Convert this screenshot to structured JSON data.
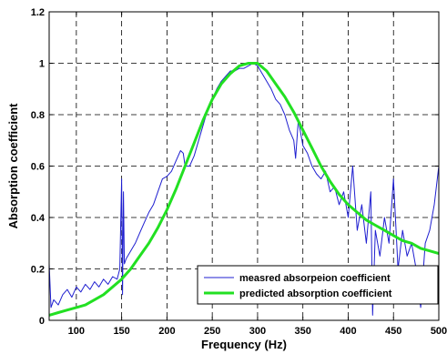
{
  "chart_data": {
    "type": "line",
    "title": "",
    "xlabel": "Frequency (Hz)",
    "ylabel": "Absorption coefficient",
    "xlim": [
      70,
      500
    ],
    "ylim": [
      0,
      1.2
    ],
    "xticks": [
      100,
      150,
      200,
      250,
      300,
      350,
      400,
      450,
      500
    ],
    "yticks": [
      0,
      0.2,
      0.4,
      0.6,
      0.8,
      1,
      1.2
    ],
    "xtick_labels": [
      "100",
      "150",
      "200",
      "250",
      "300",
      "350",
      "400",
      "450",
      "500"
    ],
    "ytick_labels": [
      "0",
      "0.2",
      "0.4",
      "0.6",
      "0.8",
      "1",
      "1.2"
    ],
    "grid": true,
    "grid_style": "dashed",
    "legend_position": "bottom-right",
    "series": [
      {
        "name": "measred absorpeion coefficient",
        "color": "#1f1fd0",
        "style": "noisy-thin",
        "x": [
          70,
          72,
          75,
          80,
          85,
          90,
          95,
          100,
          105,
          110,
          115,
          120,
          125,
          130,
          135,
          140,
          145,
          148,
          150,
          151,
          152,
          153,
          155,
          160,
          165,
          170,
          175,
          180,
          185,
          190,
          195,
          200,
          205,
          210,
          215,
          218,
          220,
          225,
          230,
          235,
          240,
          245,
          250,
          255,
          260,
          265,
          270,
          275,
          280,
          285,
          290,
          295,
          300,
          305,
          310,
          315,
          320,
          325,
          330,
          335,
          340,
          342,
          345,
          350,
          355,
          360,
          365,
          370,
          375,
          380,
          385,
          390,
          395,
          400,
          405,
          410,
          415,
          420,
          425,
          427,
          430,
          435,
          440,
          445,
          450,
          455,
          460,
          465,
          470,
          475,
          480,
          485,
          490,
          495,
          500
        ],
        "y": [
          0.22,
          0.05,
          0.08,
          0.06,
          0.1,
          0.12,
          0.09,
          0.13,
          0.11,
          0.14,
          0.12,
          0.15,
          0.13,
          0.16,
          0.14,
          0.17,
          0.16,
          0.2,
          0.55,
          0.1,
          0.5,
          0.22,
          0.24,
          0.27,
          0.3,
          0.34,
          0.38,
          0.42,
          0.45,
          0.5,
          0.55,
          0.56,
          0.58,
          0.62,
          0.66,
          0.65,
          0.6,
          0.6,
          0.64,
          0.7,
          0.76,
          0.82,
          0.86,
          0.9,
          0.93,
          0.95,
          0.97,
          0.97,
          0.98,
          0.98,
          0.99,
          1.0,
          0.99,
          0.96,
          0.93,
          0.9,
          0.86,
          0.84,
          0.8,
          0.74,
          0.7,
          0.63,
          0.78,
          0.68,
          0.65,
          0.6,
          0.57,
          0.55,
          0.58,
          0.5,
          0.52,
          0.45,
          0.5,
          0.4,
          0.6,
          0.35,
          0.45,
          0.3,
          0.5,
          0.02,
          0.35,
          0.25,
          0.4,
          0.3,
          0.55,
          0.2,
          0.35,
          0.25,
          0.3,
          0.2,
          0.05,
          0.3,
          0.35,
          0.45,
          0.6
        ]
      },
      {
        "name": "predicted absorption coefficient",
        "color": "#22e022",
        "style": "smooth-thick",
        "x": [
          70,
          80,
          90,
          100,
          110,
          120,
          130,
          140,
          150,
          160,
          170,
          180,
          190,
          200,
          210,
          220,
          230,
          240,
          250,
          260,
          270,
          280,
          290,
          300,
          310,
          320,
          330,
          340,
          350,
          360,
          370,
          380,
          390,
          400,
          410,
          420,
          430,
          440,
          450,
          460,
          470,
          480,
          490,
          500
        ],
        "y": [
          0.02,
          0.03,
          0.04,
          0.05,
          0.06,
          0.08,
          0.1,
          0.13,
          0.16,
          0.2,
          0.25,
          0.3,
          0.36,
          0.43,
          0.51,
          0.6,
          0.69,
          0.78,
          0.86,
          0.92,
          0.96,
          0.99,
          1.0,
          1.0,
          0.97,
          0.92,
          0.87,
          0.81,
          0.74,
          0.67,
          0.6,
          0.54,
          0.49,
          0.45,
          0.42,
          0.39,
          0.37,
          0.35,
          0.33,
          0.31,
          0.3,
          0.28,
          0.27,
          0.26
        ]
      }
    ]
  }
}
